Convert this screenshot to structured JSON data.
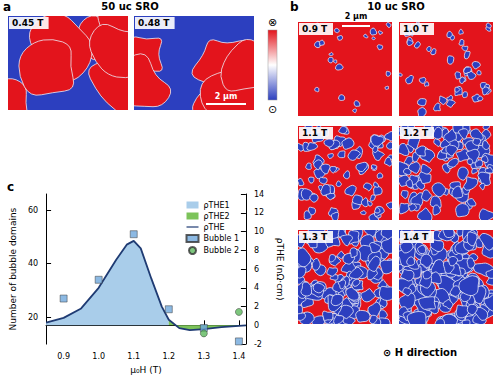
{
  "panels": {
    "a": {
      "label": "a",
      "title": "50 uc SRO",
      "images": [
        "0.45 T",
        "0.48 T"
      ],
      "scale_bar": "2 μm"
    },
    "colorbar": {
      "top": "⊗",
      "bottom": "⊙"
    },
    "b": {
      "label": "b",
      "title": "10 uc SRO",
      "images": [
        "0.9 T",
        "1.0 T",
        "1.1 T",
        "1.2 T",
        "1.3 T",
        "1.4 T"
      ],
      "scale_bar": "2 μm",
      "footer": "⊙ H direction"
    }
  },
  "chart_data": {
    "type": "line",
    "title": "c",
    "x_label": "μ₀H (T)",
    "y_label": "Number of bubble domains",
    "y2_label": "ρTHE (nΩ·cm)",
    "xlim": [
      0.85,
      1.42
    ],
    "xticks": [
      0.9,
      {
        "value": 1,
        "label": "1.0"
      },
      1.1,
      1.2,
      1.3,
      1.4
    ],
    "ylim": [
      10,
      66
    ],
    "yticks": [
      20,
      40,
      60
    ],
    "y2lim": [
      -2,
      14
    ],
    "y2ticks": [
      -2,
      0,
      2,
      4,
      6,
      8,
      10,
      12,
      14
    ],
    "grid": false,
    "legend": "upper right",
    "series": [
      {
        "name": "ρTHE1",
        "type": "area",
        "axis": "y2",
        "color": "#a9cdea",
        "x": [
          0.85,
          0.9,
          0.95,
          1.0,
          1.05,
          1.08,
          1.1,
          1.12,
          1.15,
          1.18,
          1.2
        ],
        "values": [
          0.3,
          0.8,
          1.8,
          4.0,
          7.0,
          8.6,
          9.0,
          8.2,
          5.0,
          2.0,
          0.6
        ]
      },
      {
        "name": "ρTHE2",
        "type": "area",
        "axis": "y2",
        "color": "#7cc35a",
        "x": [
          1.2,
          1.23,
          1.26,
          1.3,
          1.35,
          1.42
        ],
        "values": [
          0.6,
          -0.3,
          -0.5,
          -0.4,
          -0.2,
          0.0
        ]
      },
      {
        "name": "ρTHE",
        "type": "line",
        "axis": "y2",
        "color": "#1f3b73",
        "x": [
          0.85,
          0.9,
          0.95,
          1.0,
          1.05,
          1.08,
          1.1,
          1.12,
          1.15,
          1.18,
          1.2,
          1.23,
          1.26,
          1.3,
          1.35,
          1.42
        ],
        "values": [
          0.3,
          0.8,
          1.8,
          4.0,
          7.0,
          8.6,
          9.0,
          8.2,
          5.0,
          2.0,
          0.6,
          -0.3,
          -0.5,
          -0.4,
          -0.2,
          0.0
        ]
      },
      {
        "name": "Bubble 1",
        "type": "scatter",
        "marker": "square",
        "color": "#6fa8dc",
        "x": [
          0.9,
          1.0,
          1.1,
          1.2,
          1.3,
          1.4
        ],
        "values": [
          27,
          34,
          51,
          23,
          16,
          11
        ]
      },
      {
        "name": "Bubble 2",
        "type": "scatter",
        "marker": "circle",
        "color": "#5cb85c",
        "x": [
          1.3,
          1.4
        ],
        "values": [
          14,
          22
        ]
      }
    ]
  }
}
